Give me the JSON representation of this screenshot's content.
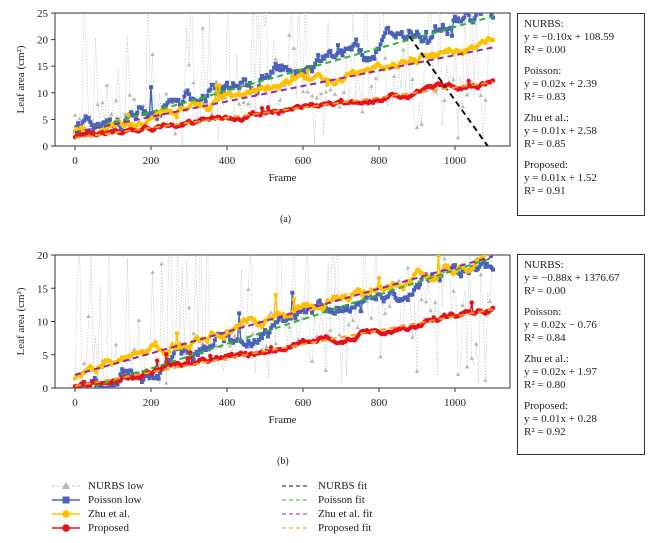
{
  "figure": {
    "panels": [
      {
        "caption": "(a)",
        "equations": [
          {
            "name": "NURBS:",
            "eq": "y = −0.10x + 108.59",
            "r2": "R² = 0.00"
          },
          {
            "name": "Poisson:",
            "eq": "y = 0.02x + 2.39",
            "r2": "R² = 0.83"
          },
          {
            "name": "Zhu et al.:",
            "eq": "y = 0.01x + 2.58",
            "r2": "R² = 0.85"
          },
          {
            "name": "Proposed:",
            "eq": "y = 0.01x + 1.52",
            "r2": "R² = 0.91"
          }
        ]
      },
      {
        "caption": "(b)",
        "equations": [
          {
            "name": "NURBS:",
            "eq": "y = −0.88x + 1376.67",
            "r2": "R² = 0.00"
          },
          {
            "name": "Poisson:",
            "eq": "y = 0.02x − 0.76",
            "r2": "R² = 0.84"
          },
          {
            "name": "Zhu et al.:",
            "eq": "y = 0.02x + 1.97",
            "r2": "R² = 0.80"
          },
          {
            "name": "Proposed:",
            "eq": "y = 0.01x + 0.28",
            "r2": "R² = 0.92"
          }
        ]
      }
    ],
    "legend": {
      "left": [
        {
          "label": "NURBS low",
          "color": "#b8b8b8",
          "marker": "triangle"
        },
        {
          "label": "Poisson low",
          "color": "#4a63b8",
          "marker": "square"
        },
        {
          "label": "Zhu et al.",
          "color": "#ffc000",
          "marker": "circle"
        },
        {
          "label": "Proposed",
          "color": "#e8101a",
          "marker": "circle"
        }
      ],
      "right": [
        {
          "label": "NURBS fit",
          "color": "#111111"
        },
        {
          "label": "Poisson fit",
          "color": "#2db52d"
        },
        {
          "label": "Zhu et al. fit",
          "color": "#8a2aa8"
        },
        {
          "label": "Proposed fit",
          "color": "#ff9a1a"
        }
      ]
    }
  },
  "chart_data": [
    {
      "type": "line",
      "title": "(a)",
      "xlabel": "Frame",
      "ylabel": "Leaf area (cm²)",
      "xlim": [
        -50,
        1150
      ],
      "ylim": [
        0,
        25
      ],
      "xticks": [
        0,
        200,
        400,
        600,
        800,
        1000
      ],
      "yticks": [
        0,
        5,
        10,
        15,
        20,
        25
      ],
      "grid": false,
      "x_range": [
        0,
        1100
      ],
      "series": [
        {
          "name": "NURBS low",
          "kind": "noisy",
          "trend": [
            0.005,
            6.0
          ],
          "noise": 6,
          "color": "#b8b8b8",
          "marker": "triangle"
        },
        {
          "name": "Poisson low",
          "kind": "noisy",
          "trend": [
            0.02,
            2.39
          ],
          "noise": 3.5,
          "color": "#4a63b8",
          "marker": "square"
        },
        {
          "name": "Zhu et al.",
          "kind": "noisy",
          "trend": [
            0.0155,
            2.58
          ],
          "noise": 1.8,
          "color": "#ffc000",
          "marker": "circle"
        },
        {
          "name": "Proposed",
          "kind": "noisy",
          "trend": [
            0.0095,
            1.52
          ],
          "noise": 1.0,
          "color": "#e8101a",
          "marker": "circle"
        }
      ],
      "fits": [
        {
          "name": "NURBS fit",
          "slope": -0.1,
          "intercept": 108.59,
          "r2": 0.0,
          "x_range": [
            880,
            1100
          ],
          "color": "#111111"
        },
        {
          "name": "Poisson fit",
          "slope": 0.02,
          "intercept": 2.39,
          "r2": 0.83,
          "x_range": [
            0,
            1100
          ],
          "color": "#2db52d"
        },
        {
          "name": "Zhu et al. fit",
          "slope": 0.0145,
          "intercept": 2.58,
          "r2": 0.85,
          "x_range": [
            0,
            1100
          ],
          "color": "#8a2aa8"
        },
        {
          "name": "Proposed fit",
          "slope": 0.0095,
          "intercept": 1.52,
          "r2": 0.91,
          "x_range": [
            0,
            1100
          ],
          "color": "#ff9a1a"
        }
      ]
    },
    {
      "type": "line",
      "title": "(b)",
      "xlabel": "Frame",
      "ylabel": "Leaf area (cm²)",
      "xlim": [
        -50,
        1150
      ],
      "ylim": [
        0,
        20
      ],
      "xticks": [
        0,
        200,
        400,
        600,
        800,
        1000
      ],
      "yticks": [
        0,
        5,
        10,
        15,
        20
      ],
      "grid": false,
      "x_range": [
        0,
        1100
      ],
      "series": [
        {
          "name": "NURBS low",
          "kind": "noisy",
          "trend": [
            0.012,
            2.0
          ],
          "noise": 5,
          "color": "#b8b8b8",
          "marker": "triangle"
        },
        {
          "name": "Poisson low",
          "kind": "noisy",
          "trend": [
            0.0185,
            -0.76
          ],
          "noise": 2.5,
          "color": "#4a63b8",
          "marker": "square"
        },
        {
          "name": "Zhu et al.",
          "kind": "noisy",
          "trend": [
            0.0165,
            1.97
          ],
          "noise": 1.8,
          "color": "#ffc000",
          "marker": "circle"
        },
        {
          "name": "Proposed",
          "kind": "noisy",
          "trend": [
            0.0105,
            0.28
          ],
          "noise": 1.0,
          "color": "#e8101a",
          "marker": "circle"
        }
      ],
      "fits": [
        {
          "name": "NURBS fit",
          "slope": -0.88,
          "intercept": 1376.67,
          "r2": 0.0,
          "x_range": [
            1560,
            1565
          ],
          "color": "#111111"
        },
        {
          "name": "Poisson fit",
          "slope": 0.0185,
          "intercept": -0.76,
          "r2": 0.84,
          "x_range": [
            0,
            1100
          ],
          "color": "#2db52d"
        },
        {
          "name": "Zhu et al. fit",
          "slope": 0.0162,
          "intercept": 1.97,
          "r2": 0.8,
          "x_range": [
            0,
            1100
          ],
          "color": "#8a2aa8"
        },
        {
          "name": "Proposed fit",
          "slope": 0.0105,
          "intercept": 0.28,
          "r2": 0.92,
          "x_range": [
            0,
            1100
          ],
          "color": "#ff9a1a"
        }
      ]
    }
  ]
}
